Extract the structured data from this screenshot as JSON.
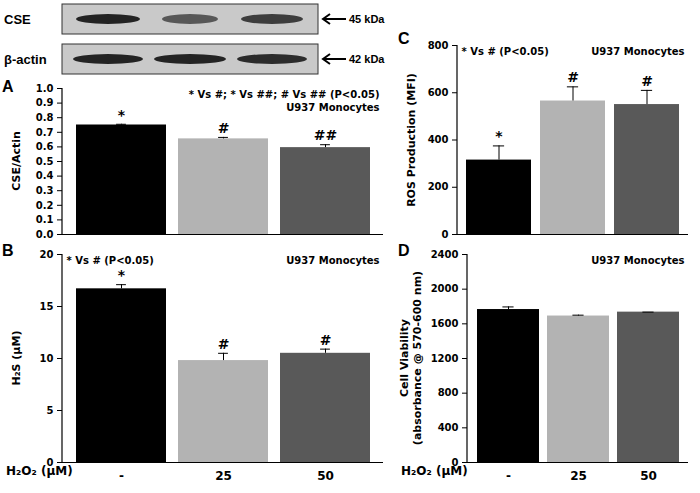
{
  "blot": {
    "panel": "A",
    "rows": [
      {
        "label": "CSE",
        "size": "45 kDa"
      },
      {
        "label": "β-actin",
        "size": "42 kDa"
      }
    ]
  },
  "chart_data": [
    {
      "type": "bar",
      "panel": "A",
      "y_label": "CSE/Actin",
      "categories": [
        "-",
        "25",
        "50"
      ],
      "values": [
        0.75,
        0.655,
        0.595
      ],
      "errors": [
        0.005,
        0.01,
        0.02
      ],
      "colors": [
        "#000000",
        "#b3b3b3",
        "#595959"
      ],
      "significance": [
        "*",
        "#",
        "##"
      ],
      "annotations": [
        "* Vs #; * Vs ##; # Vs ## (P<0.05)",
        "U937 Monocytes"
      ],
      "ylim": [
        0,
        1
      ],
      "yticks": [
        {
          "value": 0,
          "label": "0.0"
        },
        {
          "value": 0.1,
          "label": "0.1"
        },
        {
          "value": 0.2,
          "label": "0.2"
        },
        {
          "value": 0.3,
          "label": "0.3"
        },
        {
          "value": 0.4,
          "label": "0.4"
        },
        {
          "value": 0.5,
          "label": "0.5"
        },
        {
          "value": 0.6,
          "label": "0.6"
        },
        {
          "value": 0.7,
          "label": "0.7"
        },
        {
          "value": 0.8,
          "label": "0.8"
        },
        {
          "value": 0.9,
          "label": "0.9"
        },
        {
          "value": 1,
          "label": "1.0"
        }
      ],
      "tick_labels": "y"
    },
    {
      "type": "bar",
      "panel": "B",
      "y_label": "H₂S (μM)",
      "x_label": "H₂O₂ (μM)",
      "categories": [
        "-",
        "25",
        "50"
      ],
      "values": [
        16.7,
        9.8,
        10.5
      ],
      "errors": [
        0.4,
        0.7,
        0.4
      ],
      "colors": [
        "#000000",
        "#b3b3b3",
        "#595959"
      ],
      "significance": [
        "*",
        "#",
        "#"
      ],
      "annotations": [
        "* Vs # (P<0.05)",
        "U937 Monocytes"
      ],
      "ylim": [
        0,
        20
      ],
      "yticks": [
        0,
        5,
        10,
        15,
        20
      ]
    },
    {
      "type": "bar",
      "panel": "C",
      "y_label": "ROS Production (MFI)",
      "categories": [
        "-",
        "25",
        "50"
      ],
      "values": [
        315,
        565,
        550
      ],
      "errors": [
        60,
        60,
        60
      ],
      "colors": [
        "#000000",
        "#b3b3b3",
        "#595959"
      ],
      "significance": [
        "*",
        "#",
        "#"
      ],
      "annotations": [
        "* Vs # (P<0.05)",
        "U937 Monocytes"
      ],
      "ylim": [
        0,
        800
      ],
      "yticks": [
        0,
        200,
        400,
        600,
        800
      ],
      "tick_labels": "y"
    },
    {
      "type": "bar",
      "panel": "D",
      "y_label": "Cell Viability\n(absorbance @ 570-600 nm)",
      "x_label": "H₂O₂ (μM)",
      "categories": [
        "-",
        "25",
        "50"
      ],
      "values": [
        1765,
        1690,
        1735
      ],
      "errors": [
        30,
        10,
        0
      ],
      "colors": [
        "#000000",
        "#b3b3b3",
        "#595959"
      ],
      "annotations": [
        "U937 Monocytes"
      ],
      "ylim": [
        0,
        2400
      ],
      "yticks": [
        0,
        400,
        800,
        1200,
        1600,
        2000,
        2400
      ]
    }
  ]
}
